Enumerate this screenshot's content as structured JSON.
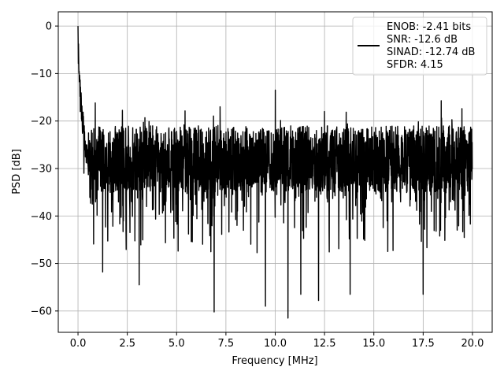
{
  "chart_data": {
    "type": "line",
    "xlabel": "Frequency [MHz]",
    "ylabel": "PSD [dB]",
    "xlim": [
      -1.0,
      21.0
    ],
    "ylim": [
      -64.5,
      3.0
    ],
    "xticks": [
      0.0,
      2.5,
      5.0,
      7.5,
      10.0,
      12.5,
      15.0,
      17.5,
      20.0
    ],
    "xtick_labels": [
      "0.0",
      "2.5",
      "5.0",
      "7.5",
      "10.0",
      "12.5",
      "15.0",
      "17.5",
      "20.0"
    ],
    "yticks": [
      0,
      -10,
      -20,
      -30,
      -40,
      -50,
      -60
    ],
    "ytick_labels": [
      "0",
      "−10",
      "−20",
      "−30",
      "−40",
      "−50",
      "−60"
    ],
    "grid": true,
    "legend_position": "top-right",
    "series": [
      {
        "color": "#000000",
        "legend_lines": [
          "ENOB: -2.41 bits",
          "SNR: -12.6 dB",
          "SINAD: -12.74 dB",
          "SFDR: 4.15"
        ],
        "x_range": [
          0.0,
          20.0
        ],
        "points": 2400,
        "noise_floor_db": -28,
        "notable_points": [
          {
            "x": 0.0,
            "y": 0.0
          },
          {
            "x": 0.05,
            "y": -10.0
          },
          {
            "x": 0.12,
            "y": -18.0
          },
          {
            "x": 0.3,
            "y": -31.0
          },
          {
            "x": 1.25,
            "y": -51.8
          },
          {
            "x": 3.1,
            "y": -54.5
          },
          {
            "x": 6.9,
            "y": -60.2
          },
          {
            "x": 9.5,
            "y": -59.0
          },
          {
            "x": 10.0,
            "y": -13.5
          },
          {
            "x": 10.65,
            "y": -61.5
          },
          {
            "x": 11.3,
            "y": -56.5
          },
          {
            "x": 12.2,
            "y": -57.8
          },
          {
            "x": 13.8,
            "y": -56.5
          },
          {
            "x": 17.5,
            "y": -56.5
          },
          {
            "x": 12.5,
            "y": -18.0
          },
          {
            "x": 7.2,
            "y": -17.0
          }
        ]
      }
    ]
  }
}
